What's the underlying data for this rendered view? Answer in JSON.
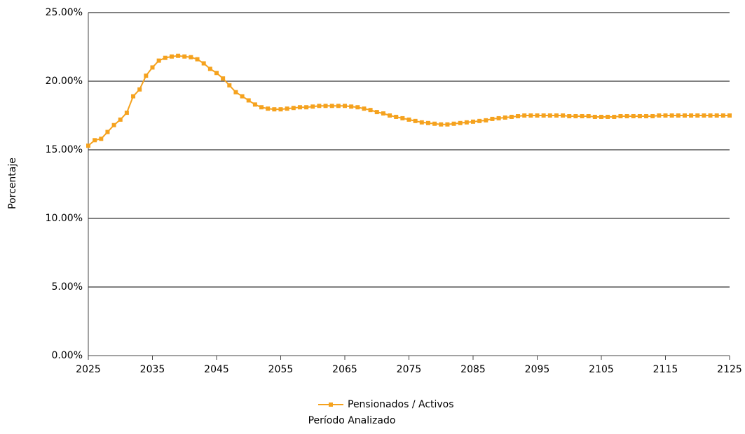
{
  "chart_data": {
    "type": "line",
    "x_label": "Período Analizado",
    "y_label": "Porcentaje",
    "x": [
      2025,
      2026,
      2027,
      2028,
      2029,
      2030,
      2031,
      2032,
      2033,
      2034,
      2035,
      2036,
      2037,
      2038,
      2039,
      2040,
      2041,
      2042,
      2043,
      2044,
      2045,
      2046,
      2047,
      2048,
      2049,
      2050,
      2051,
      2052,
      2053,
      2054,
      2055,
      2056,
      2057,
      2058,
      2059,
      2060,
      2061,
      2062,
      2063,
      2064,
      2065,
      2066,
      2067,
      2068,
      2069,
      2070,
      2071,
      2072,
      2073,
      2074,
      2075,
      2076,
      2077,
      2078,
      2079,
      2080,
      2081,
      2082,
      2083,
      2084,
      2085,
      2086,
      2087,
      2088,
      2089,
      2090,
      2091,
      2092,
      2093,
      2094,
      2095,
      2096,
      2097,
      2098,
      2099,
      2100,
      2101,
      2102,
      2103,
      2104,
      2105,
      2106,
      2107,
      2108,
      2109,
      2110,
      2111,
      2112,
      2113,
      2114,
      2115,
      2116,
      2117,
      2118,
      2119,
      2120,
      2121,
      2122,
      2123,
      2124,
      2125
    ],
    "series": [
      {
        "name": "Pensionados / Activos",
        "color": "#f5a21e",
        "values": [
          15.3,
          15.7,
          15.8,
          16.3,
          16.8,
          17.2,
          17.7,
          18.9,
          19.4,
          20.4,
          21.0,
          21.5,
          21.7,
          21.8,
          21.85,
          21.8,
          21.75,
          21.6,
          21.3,
          20.9,
          20.6,
          20.2,
          19.7,
          19.2,
          18.9,
          18.6,
          18.3,
          18.1,
          18.0,
          17.95,
          17.95,
          18.0,
          18.05,
          18.1,
          18.1,
          18.15,
          18.2,
          18.2,
          18.2,
          18.2,
          18.2,
          18.15,
          18.1,
          18.0,
          17.9,
          17.75,
          17.65,
          17.5,
          17.4,
          17.3,
          17.2,
          17.1,
          17.0,
          16.95,
          16.9,
          16.85,
          16.85,
          16.9,
          16.95,
          17.0,
          17.05,
          17.1,
          17.15,
          17.25,
          17.3,
          17.35,
          17.4,
          17.45,
          17.5,
          17.5,
          17.5,
          17.5,
          17.5,
          17.5,
          17.5,
          17.45,
          17.45,
          17.45,
          17.45,
          17.4,
          17.4,
          17.4,
          17.4,
          17.45,
          17.45,
          17.45,
          17.45,
          17.45,
          17.45,
          17.5,
          17.5,
          17.5,
          17.5,
          17.5,
          17.5,
          17.5,
          17.5,
          17.5,
          17.5,
          17.5,
          17.5
        ]
      }
    ],
    "xlim": [
      2025,
      2125
    ],
    "xticks": [
      2025,
      2035,
      2045,
      2055,
      2065,
      2075,
      2085,
      2095,
      2105,
      2115,
      2125
    ],
    "ylim": [
      0,
      25
    ],
    "yticks": [
      {
        "value": 0,
        "label": "0.00%"
      },
      {
        "value": 5,
        "label": "5.00%"
      },
      {
        "value": 10,
        "label": "10.00%"
      },
      {
        "value": 15,
        "label": "15.00%"
      },
      {
        "value": 20,
        "label": "20.00%"
      },
      {
        "value": 25,
        "label": "25.00%"
      }
    ],
    "grid": true,
    "legend": "bottom"
  }
}
